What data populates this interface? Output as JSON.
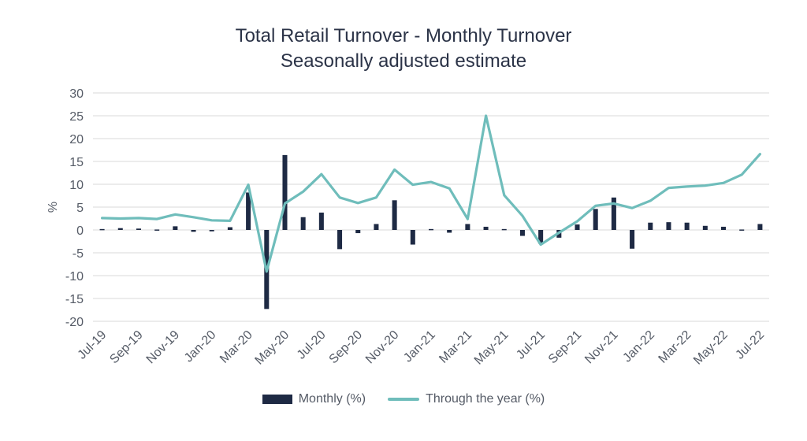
{
  "chart_data": {
    "type": "bar",
    "title": "Total Retail Turnover - Monthly Turnover",
    "subtitle": "Seasonally adjusted estimate",
    "ylabel": "%",
    "xlabel": "",
    "ylim": [
      -20,
      30
    ],
    "yticks": [
      30,
      25,
      20,
      15,
      10,
      5,
      0,
      -5,
      -10,
      -15,
      -20
    ],
    "grid": true,
    "legend_position": "bottom",
    "categories": [
      "Jul-19",
      "Aug-19",
      "Sep-19",
      "Oct-19",
      "Nov-19",
      "Dec-19",
      "Jan-20",
      "Feb-20",
      "Mar-20",
      "Apr-20",
      "May-20",
      "Jun-20",
      "Jul-20",
      "Aug-20",
      "Sep-20",
      "Oct-20",
      "Nov-20",
      "Dec-20",
      "Jan-21",
      "Feb-21",
      "Mar-21",
      "Apr-21",
      "May-21",
      "Jun-21",
      "Jul-21",
      "Aug-21",
      "Sep-21",
      "Oct-21",
      "Nov-21",
      "Dec-21",
      "Jan-22",
      "Feb-22",
      "Mar-22",
      "Apr-22",
      "May-22",
      "Jun-22",
      "Jul-22"
    ],
    "xtick_labels": [
      "Jul-19",
      "Sep-19",
      "Nov-19",
      "Jan-20",
      "Mar-20",
      "May-20",
      "Jul-20",
      "Sep-20",
      "Nov-20",
      "Jan-21",
      "Mar-21",
      "May-21",
      "Jul-21",
      "Sep-21",
      "Nov-21",
      "Jan-22",
      "Mar-22",
      "May-22",
      "Jul-22"
    ],
    "series": [
      {
        "name": "Monthly (%)",
        "type": "bar",
        "color": "#1e2a44",
        "values": [
          0.2,
          0.4,
          0.3,
          0.1,
          0.8,
          -0.4,
          -0.3,
          0.6,
          8.2,
          -17.3,
          16.4,
          2.8,
          3.8,
          -4.2,
          -0.7,
          1.3,
          6.5,
          -3.2,
          0.2,
          -0.6,
          1.3,
          0.7,
          0.2,
          -1.3,
          -3.0,
          -1.7,
          1.2,
          4.6,
          7.1,
          -4.1,
          1.6,
          1.7,
          1.6,
          0.9,
          0.7,
          0.1,
          1.3
        ]
      },
      {
        "name": "Through the year (%)",
        "type": "line",
        "color": "#6fbdbb",
        "values": [
          2.6,
          2.5,
          2.6,
          2.4,
          3.4,
          2.8,
          2.1,
          2.0,
          9.9,
          -9.1,
          5.8,
          8.4,
          12.2,
          7.1,
          5.9,
          7.1,
          13.2,
          9.9,
          10.5,
          9.1,
          2.4,
          25.0,
          7.6,
          3.1,
          -3.2,
          -0.6,
          1.9,
          5.3,
          5.8,
          4.8,
          6.4,
          9.2,
          9.5,
          9.7,
          10.3,
          12.1,
          16.6
        ]
      }
    ]
  }
}
